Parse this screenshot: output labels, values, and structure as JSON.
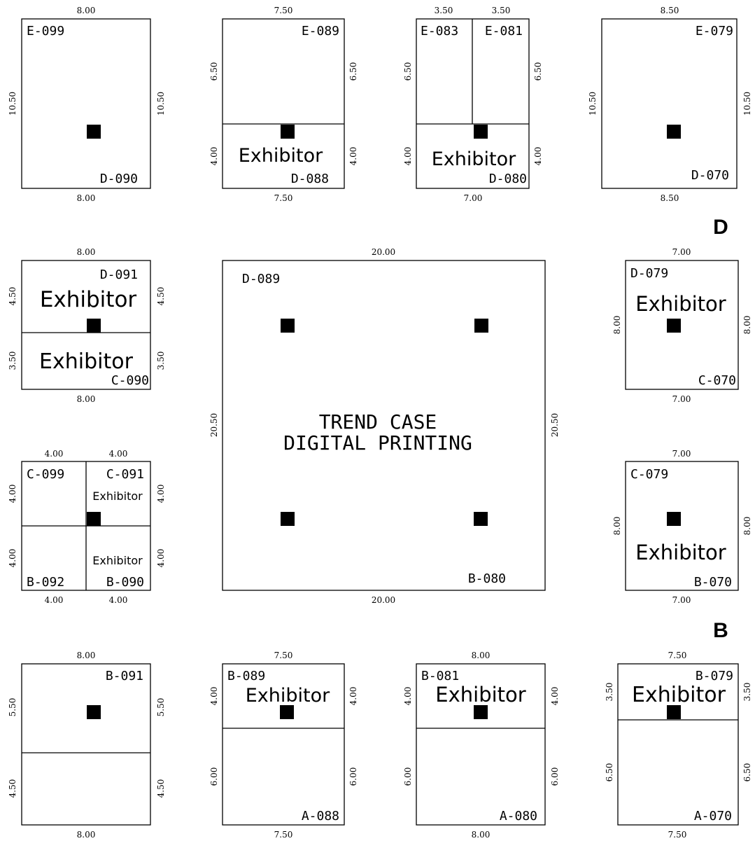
{
  "colors": {
    "line": "#000000",
    "column": "#000000",
    "background": "#ffffff"
  },
  "section_labels": [
    "D",
    "B"
  ],
  "booths": {
    "E099_D090": {
      "codes": [
        "E-099",
        "D-090"
      ],
      "dims": [
        "8.00",
        "8.00",
        "10.50",
        "10.50"
      ]
    },
    "E089_D088": {
      "codes": [
        "E-089",
        "D-088"
      ],
      "exhibitor": "Exhibitor",
      "dims": [
        "7.50",
        "7.50",
        "6.50",
        "6.50",
        "4.00",
        "4.00"
      ]
    },
    "E083_E081_D080": {
      "codes": [
        "E-083",
        "E-081",
        "D-080"
      ],
      "exhibitor": "Exhibitor",
      "dims": [
        "3.50",
        "3.50",
        "7.00",
        "6.50",
        "6.50",
        "4.00",
        "4.00"
      ]
    },
    "E079_D070": {
      "codes": [
        "E-079",
        "D-070"
      ],
      "dims": [
        "8.50",
        "8.50",
        "10.50",
        "10.50"
      ]
    },
    "D091_C090": {
      "codes": [
        "D-091",
        "C-090"
      ],
      "exhibitor_top": "Exhibitor",
      "exhibitor_bottom": "Exhibitor",
      "dims": [
        "8.00",
        "8.00",
        "4.50",
        "4.50",
        "3.50",
        "3.50"
      ]
    },
    "island": {
      "code_top": "D-089",
      "code_bottom": "B-080",
      "name_line1": "TREND CASE",
      "name_line2": "DIGITAL PRINTING",
      "dims": [
        "20.00",
        "20.00",
        "20.50",
        "20.50"
      ]
    },
    "D079_C070": {
      "codes": [
        "D-079",
        "C-070"
      ],
      "exhibitor": "Exhibitor",
      "dims": [
        "7.00",
        "7.00",
        "8.00",
        "8.00"
      ]
    },
    "C099_quad": {
      "codes": [
        "C-099",
        "C-091",
        "B-092",
        "B-090"
      ],
      "exhibitor_top": "Exhibitor",
      "exhibitor_bottom": "Exhibitor",
      "dims": [
        "4.00",
        "4.00",
        "4.00",
        "4.00",
        "4.00",
        "4.00",
        "4.00",
        "4.00"
      ]
    },
    "C079_B070": {
      "codes": [
        "C-079",
        "B-070"
      ],
      "exhibitor": "Exhibitor",
      "dims": [
        "7.00",
        "7.00",
        "8.00",
        "8.00"
      ]
    },
    "B091": {
      "codes": [
        "B-091"
      ],
      "dims": [
        "8.00",
        "8.00",
        "5.50",
        "5.50",
        "4.50",
        "4.50"
      ]
    },
    "B089_A088": {
      "codes": [
        "B-089",
        "A-088"
      ],
      "exhibitor": "Exhibitor",
      "dims": [
        "7.50",
        "7.50",
        "4.00",
        "4.00",
        "6.00",
        "6.00"
      ]
    },
    "B081_A080": {
      "codes": [
        "B-081",
        "A-080"
      ],
      "exhibitor": "Exhibitor",
      "dims": [
        "8.00",
        "8.00",
        "4.00",
        "4.00",
        "6.00",
        "6.00"
      ]
    },
    "B079_A070": {
      "codes": [
        "B-079",
        "A-070"
      ],
      "exhibitor": "Exhibitor",
      "dims": [
        "7.50",
        "7.50",
        "3.50",
        "3.50",
        "6.50",
        "6.50"
      ]
    }
  }
}
